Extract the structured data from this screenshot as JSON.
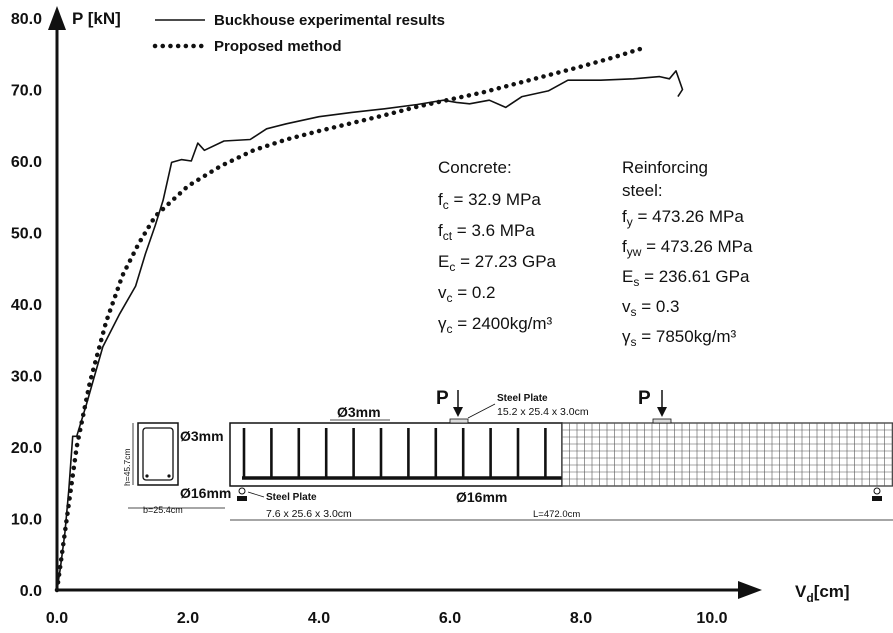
{
  "chart_data": {
    "type": "line",
    "title": "",
    "xlabel": "V",
    "xlabel_sub": "d",
    "xlabel_unit": "[cm]",
    "ylabel": "P [kN]",
    "xlim": [
      0,
      12.6
    ],
    "ylim": [
      0,
      80
    ],
    "x_ticks": [
      "0.0",
      "2.0",
      "4.0",
      "6.0",
      "8.0",
      "10.0"
    ],
    "y_ticks": [
      "0.0",
      "10.0",
      "20.0",
      "30.0",
      "40.0",
      "50.0",
      "60.0",
      "70.0",
      "80.0"
    ],
    "grid": false,
    "legend_position": "top-left",
    "series": [
      {
        "name": "Buckhouse experimental results",
        "style": "solid",
        "points": [
          [
            0.0,
            0.0
          ],
          [
            0.05,
            3.0
          ],
          [
            0.12,
            8.0
          ],
          [
            0.18,
            14.0
          ],
          [
            0.24,
            21.5
          ],
          [
            0.3,
            21.5
          ],
          [
            0.45,
            26.0
          ],
          [
            0.7,
            34.0
          ],
          [
            0.95,
            38.5
          ],
          [
            1.2,
            42.5
          ],
          [
            1.35,
            47.0
          ],
          [
            1.5,
            51.0
          ],
          [
            1.62,
            54.5
          ],
          [
            1.75,
            59.8
          ],
          [
            1.9,
            60.2
          ],
          [
            2.05,
            60.0
          ],
          [
            2.15,
            62.5
          ],
          [
            2.25,
            61.5
          ],
          [
            2.55,
            62.8
          ],
          [
            2.95,
            63.0
          ],
          [
            3.2,
            64.5
          ],
          [
            3.5,
            65.2
          ],
          [
            4.0,
            66.2
          ],
          [
            4.5,
            66.8
          ],
          [
            5.0,
            67.3
          ],
          [
            5.5,
            67.9
          ],
          [
            5.9,
            68.5
          ],
          [
            6.1,
            68.2
          ],
          [
            6.3,
            68.0
          ],
          [
            6.6,
            68.5
          ],
          [
            6.85,
            67.5
          ],
          [
            7.1,
            69.0
          ],
          [
            7.5,
            69.8
          ],
          [
            7.8,
            71.3
          ],
          [
            8.3,
            71.3
          ],
          [
            8.8,
            71.5
          ],
          [
            9.2,
            71.8
          ],
          [
            9.35,
            71.5
          ],
          [
            9.45,
            72.6
          ],
          [
            9.55,
            70.0
          ],
          [
            9.48,
            69.0
          ]
        ]
      },
      {
        "name": "Proposed method",
        "style": "dotted",
        "points": [
          [
            0.0,
            0.0
          ],
          [
            0.15,
            10.0
          ],
          [
            0.3,
            20.0
          ],
          [
            0.5,
            29.0
          ],
          [
            0.75,
            37.5
          ],
          [
            1.0,
            44.0
          ],
          [
            1.25,
            48.5
          ],
          [
            1.5,
            52.3
          ],
          [
            2.0,
            56.5
          ],
          [
            2.5,
            59.3
          ],
          [
            3.0,
            61.5
          ],
          [
            3.5,
            63.0
          ],
          [
            4.0,
            64.2
          ],
          [
            4.5,
            65.3
          ],
          [
            5.0,
            66.4
          ],
          [
            5.5,
            67.6
          ],
          [
            6.0,
            68.6
          ],
          [
            6.5,
            69.6
          ],
          [
            7.0,
            70.8
          ],
          [
            7.5,
            72.0
          ],
          [
            8.0,
            73.2
          ],
          [
            8.5,
            74.5
          ],
          [
            8.95,
            75.8
          ]
        ]
      }
    ]
  },
  "annotations": {
    "concrete": {
      "heading": "Concrete:",
      "fc": {
        "sym": "f",
        "sub": "c",
        "val": " = 32.9 MPa"
      },
      "fct": {
        "sym": "f",
        "sub": "ct",
        "val": " = 3.6 MPa"
      },
      "Ec": {
        "sym": "E",
        "sub": "c",
        "val": " = 27.23 GPa"
      },
      "vc": {
        "sym": "v",
        "sub": "c",
        "val": " = 0.2"
      },
      "gc": {
        "sym": "γ",
        "sub": "c",
        "val": " = 2400kg/m³"
      }
    },
    "steel": {
      "heading1": "Reinforcing",
      "heading2": "steel:",
      "fy": {
        "sym": "f",
        "sub": "y",
        "val": " = 473.26 MPa"
      },
      "fyw": {
        "sym": "f",
        "sub": "yw",
        "val": " = 473.26 MPa"
      },
      "Es": {
        "sym": "E",
        "sub": "s",
        "val": " = 236.61 GPa"
      },
      "vs": {
        "sym": "v",
        "sub": "s",
        "val": " = 0.3"
      },
      "gs": {
        "sym": "γ",
        "sub": "s",
        "val": " = 7850kg/m³"
      }
    }
  },
  "beam_diagram": {
    "load_label_1": "P",
    "load_label_2": "P",
    "stirrup_label": "Ø3mm",
    "bottom_bar_label": "Ø16mm",
    "section_stirrup_label": "Ø3mm",
    "section_bar_label": "Ø16mm",
    "height_label": "h=45.7cm",
    "width_label": "b=25.4cm",
    "length_label": "L=472.0cm",
    "plate_top_title": "Steel Plate",
    "plate_top_dims": "15.2 x 25.4 x 3.0cm",
    "plate_support_title": "Steel Plate",
    "plate_support_dims": "7.6 x 25.6 x 3.0cm"
  }
}
